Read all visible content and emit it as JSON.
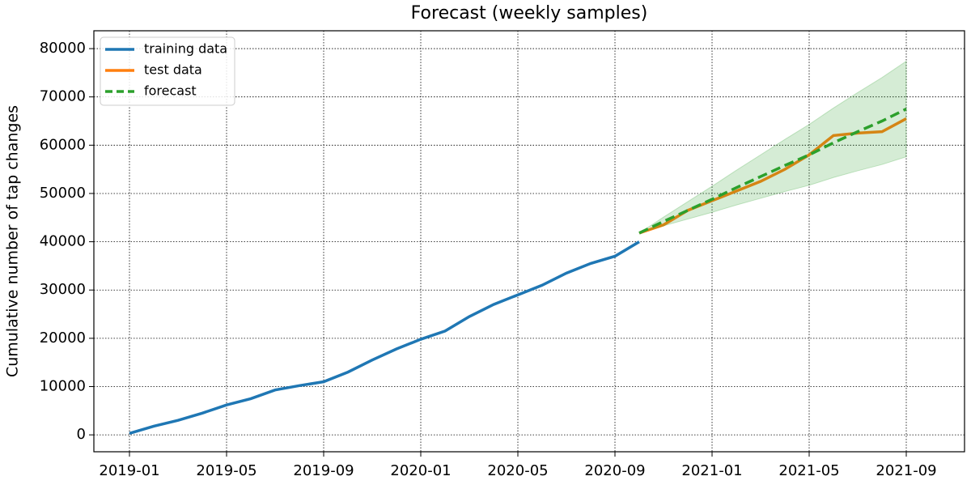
{
  "chart_data": {
    "type": "line",
    "title": "Forecast (weekly samples)",
    "y_label": "Cumulative number of tap changes",
    "xlim": [
      "2018-11",
      "2021-11"
    ],
    "xticks": [
      "2019-01",
      "2019-05",
      "2019-09",
      "2020-01",
      "2020-05",
      "2020-09",
      "2021-01",
      "2021-05",
      "2021-09"
    ],
    "ylim": [
      -3500,
      83700
    ],
    "yticks": [
      0,
      10000,
      20000,
      30000,
      40000,
      50000,
      60000,
      70000,
      80000
    ],
    "grid": true,
    "legend": "upper left",
    "series": [
      {
        "name": "training data",
        "color": "#1f77b4",
        "style": "solid",
        "x": [
          "2019-01",
          "2019-02",
          "2019-03",
          "2019-04",
          "2019-05",
          "2019-06",
          "2019-07",
          "2019-08",
          "2019-09",
          "2019-10",
          "2019-11",
          "2019-12",
          "2020-01",
          "2020-02",
          "2020-03",
          "2020-04",
          "2020-05",
          "2020-06",
          "2020-07",
          "2020-08",
          "2020-09",
          "2020-10"
        ],
        "values": [
          300,
          1800,
          3000,
          4500,
          6200,
          7500,
          9300,
          10200,
          11000,
          13000,
          15500,
          17800,
          19800,
          21500,
          24500,
          27000,
          29000,
          31000,
          33500,
          35500,
          37000,
          40000
        ]
      },
      {
        "name": "test data",
        "color": "#ff7f0e",
        "style": "solid",
        "x": [
          "2020-10",
          "2020-11",
          "2020-12",
          "2021-01",
          "2021-02",
          "2021-03",
          "2021-04",
          "2021-05",
          "2021-06",
          "2021-07",
          "2021-08",
          "2021-09"
        ],
        "values": [
          41800,
          43500,
          46500,
          48500,
          50500,
          52500,
          55000,
          58000,
          62000,
          62500,
          62800,
          65500
        ]
      },
      {
        "name": "forecast",
        "color": "#2ca02c",
        "style": "dashed",
        "band_color": "#2ca02c",
        "x": [
          "2020-10",
          "2020-11",
          "2020-12",
          "2021-01",
          "2021-02",
          "2021-03",
          "2021-04",
          "2021-05",
          "2021-06",
          "2021-07",
          "2021-08",
          "2021-09"
        ],
        "values": [
          41800,
          44200,
          46500,
          48800,
          51200,
          53500,
          55800,
          58000,
          60500,
          62800,
          65000,
          67500
        ],
        "upper": [
          41800,
          45100,
          48300,
          51500,
          54800,
          58000,
          61200,
          64300,
          67700,
          70900,
          74000,
          77400
        ],
        "lower": [
          41800,
          43300,
          44700,
          46100,
          47600,
          49000,
          50400,
          51700,
          53300,
          54700,
          56000,
          57600
        ]
      }
    ]
  }
}
